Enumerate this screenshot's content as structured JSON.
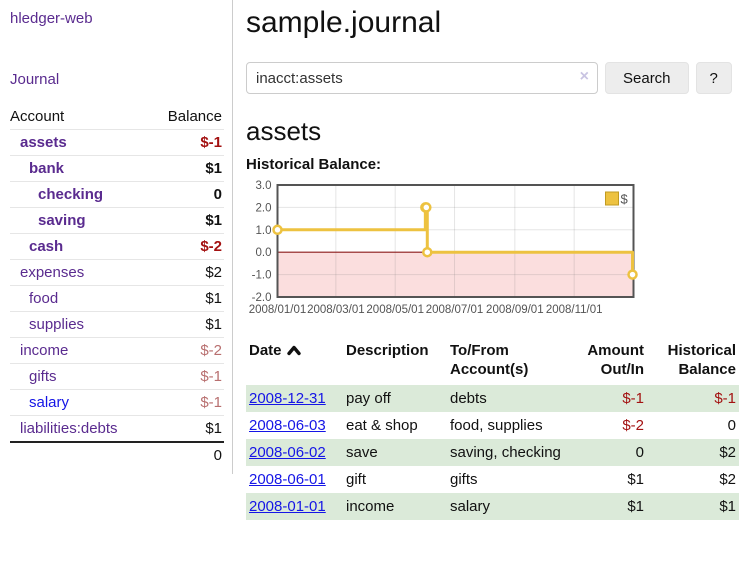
{
  "app": {
    "title": "hledger-web"
  },
  "sidebar": {
    "journal_link": "Journal",
    "table": {
      "headers": {
        "account": "Account",
        "balance": "Balance"
      },
      "accounts": [
        {
          "name": "assets",
          "balance": "$-1"
        },
        {
          "name": "bank",
          "balance": "$1"
        },
        {
          "name": "checking",
          "balance": "0"
        },
        {
          "name": "saving",
          "balance": "$1"
        },
        {
          "name": "cash",
          "balance": "$-2"
        },
        {
          "name": "expenses",
          "balance": "$2"
        },
        {
          "name": "food",
          "balance": "$1"
        },
        {
          "name": "supplies",
          "balance": "$1"
        },
        {
          "name": "income",
          "balance": "$-2"
        },
        {
          "name": "gifts",
          "balance": "$-1"
        },
        {
          "name": "salary",
          "balance": "$-1"
        },
        {
          "name": "liabilities:debts",
          "balance": "$1"
        }
      ],
      "total": "0"
    }
  },
  "main": {
    "title": "sample.journal",
    "search": {
      "value": "inacct:assets",
      "clear_icon": "×",
      "search_button": "Search",
      "help_button": "?"
    },
    "account_heading": "assets",
    "chart_heading": "Historical Balance:",
    "register": {
      "headers": {
        "date": "Date",
        "description": "Description",
        "accounts": "To/From Account(s)",
        "amount": "Amount Out/In",
        "balance": "Historical Balance"
      },
      "rows": [
        {
          "date": "2008-12-31",
          "description": "pay off",
          "accounts": "debts",
          "amount": "$-1",
          "balance": "$-1"
        },
        {
          "date": "2008-06-03",
          "description": "eat & shop",
          "accounts": "food, supplies",
          "amount": "$-2",
          "balance": "0"
        },
        {
          "date": "2008-06-02",
          "description": "save",
          "accounts": "saving, checking",
          "amount": "0",
          "balance": "$2"
        },
        {
          "date": "2008-06-01",
          "description": "gift",
          "accounts": "gifts",
          "amount": "$1",
          "balance": "$2"
        },
        {
          "date": "2008-01-01",
          "description": "income",
          "accounts": "salary",
          "amount": "$1",
          "balance": "$1"
        }
      ]
    }
  },
  "chart_data": {
    "type": "line",
    "step": true,
    "title": "Historical Balance",
    "series": [
      {
        "name": "$",
        "color": "#edc240",
        "points": [
          [
            "2008-01-01",
            1
          ],
          [
            "2008-06-01",
            2
          ],
          [
            "2008-06-02",
            2
          ],
          [
            "2008-06-03",
            0
          ],
          [
            "2008-12-31",
            -1
          ]
        ]
      }
    ],
    "x_range": [
      "2008-01-01",
      "2009-01-01"
    ],
    "x_ticks": [
      "2008/01/01",
      "2008/03/01",
      "2008/05/01",
      "2008/07/01",
      "2008/09/01",
      "2008/11/01"
    ],
    "y_ticks": [
      3.0,
      2.0,
      1.0,
      0.0,
      -1.0,
      -2.0
    ],
    "ylim": [
      -2,
      3
    ],
    "grid": true,
    "legend": {
      "label": "$",
      "position": "top-right"
    },
    "negative_region_color": "#fbdede",
    "zero_line_color": "#8b1a1a",
    "plot_border_color": "#545454",
    "axis_text_color": "#545454"
  },
  "colors": {
    "link_purple": "#5a2b8f",
    "link_blue": "#1515e6",
    "negative_strong": "#a31111",
    "negative_soft": "#b86f6f",
    "row_green": "#dbead9",
    "series_yellow": "#edc240"
  }
}
